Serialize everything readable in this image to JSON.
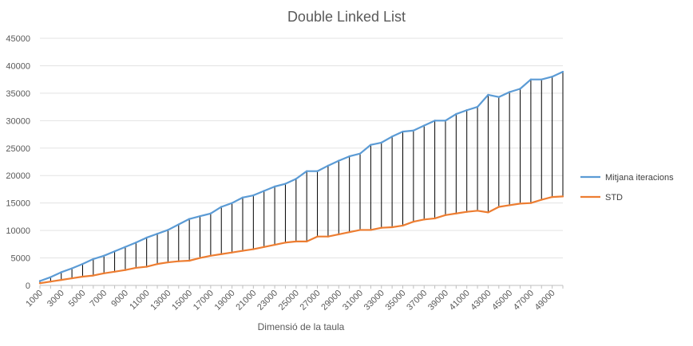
{
  "chart_data": {
    "type": "line",
    "title": "Double Linked List",
    "xlabel": "Dimensió de la taula",
    "ylabel": "",
    "ylim": [
      0,
      45000
    ],
    "yticks": [
      0,
      5000,
      10000,
      15000,
      20000,
      25000,
      30000,
      35000,
      40000,
      45000
    ],
    "x": [
      1000,
      2000,
      3000,
      4000,
      5000,
      6000,
      7000,
      8000,
      9000,
      10000,
      11000,
      12000,
      13000,
      14000,
      15000,
      16000,
      17000,
      18000,
      19000,
      20000,
      21000,
      22000,
      23000,
      24000,
      25000,
      26000,
      27000,
      28000,
      29000,
      30000,
      31000,
      32000,
      33000,
      34000,
      35000,
      36000,
      37000,
      38000,
      39000,
      40000,
      41000,
      42000,
      43000,
      44000,
      45000,
      46000,
      47000,
      48000,
      49000,
      50000
    ],
    "xtick_labels": [
      "1000",
      "3000",
      "5000",
      "7000",
      "9000",
      "11000",
      "13000",
      "15000",
      "17000",
      "19000",
      "21000",
      "23000",
      "25000",
      "27000",
      "29000",
      "31000",
      "33000",
      "35000",
      "37000",
      "39000",
      "41000",
      "43000",
      "45000",
      "47000",
      "49000"
    ],
    "legend_position": "right",
    "grid": true,
    "drop_lines": true,
    "series": [
      {
        "name": "Mitjana iteracions",
        "color": "#5b9bd5",
        "values": [
          800,
          1500,
          2400,
          3100,
          3900,
          4800,
          5400,
          6200,
          7000,
          7800,
          8700,
          9400,
          10100,
          11100,
          12100,
          12600,
          13100,
          14300,
          15000,
          16000,
          16400,
          17200,
          18000,
          18500,
          19400,
          20800,
          20800,
          21800,
          22700,
          23500,
          24000,
          25600,
          26000,
          27100,
          28000,
          28200,
          29100,
          30000,
          30000,
          31200,
          31900,
          32500,
          34700,
          34300,
          35200,
          35800,
          37500,
          37500,
          38000,
          38900
        ]
      },
      {
        "name": "STD",
        "color": "#ed7d31",
        "values": [
          400,
          700,
          1000,
          1300,
          1600,
          1800,
          2200,
          2500,
          2800,
          3200,
          3400,
          3900,
          4200,
          4400,
          4500,
          5000,
          5400,
          5700,
          6000,
          6300,
          6600,
          7000,
          7400,
          7800,
          8000,
          8000,
          8900,
          8900,
          9300,
          9700,
          10100,
          10100,
          10500,
          10600,
          10900,
          11600,
          12000,
          12200,
          12800,
          13100,
          13400,
          13600,
          13300,
          14300,
          14600,
          14900,
          15000,
          15600,
          16100,
          16200
        ]
      }
    ]
  }
}
